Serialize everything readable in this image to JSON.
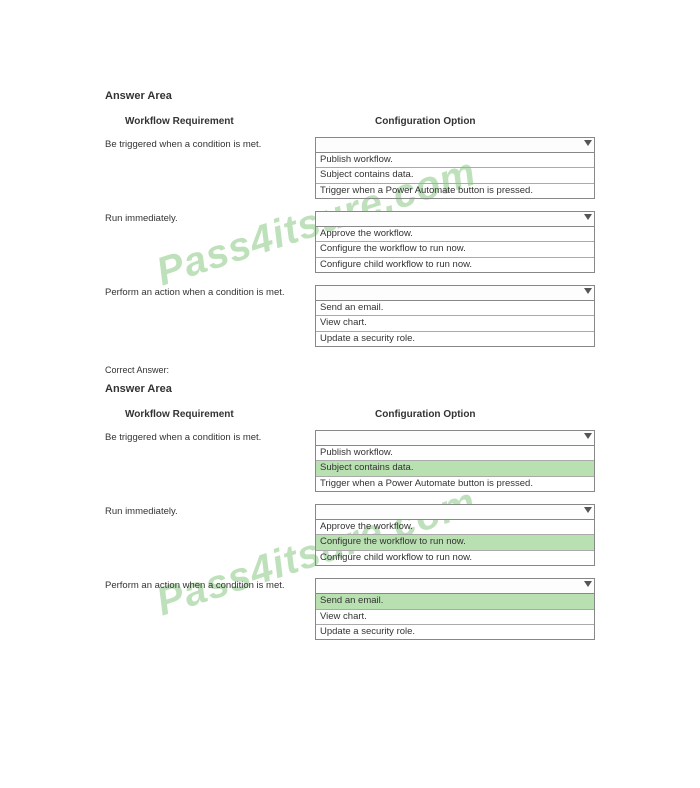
{
  "watermark_text": "Pass4itsure.com",
  "section1": {
    "title": "Answer Area",
    "header_left": "Workflow Requirement",
    "header_right": "Configuration Option",
    "rows": [
      {
        "req": "Be triggered when a condition is met.",
        "options": [
          {
            "text": "Publish workflow.",
            "hl": false
          },
          {
            "text": "Subject contains data.",
            "hl": false
          },
          {
            "text": "Trigger when a Power Automate button is pressed.",
            "hl": false
          }
        ]
      },
      {
        "req": "Run immediately.",
        "options": [
          {
            "text": "Approve the workflow.",
            "hl": false
          },
          {
            "text": "Configure the workflow to run now.",
            "hl": false
          },
          {
            "text": "Configure child workflow to run now.",
            "hl": false
          }
        ]
      },
      {
        "req": "Perform an action when a condition is met.",
        "options": [
          {
            "text": "Send an email.",
            "hl": false
          },
          {
            "text": "View chart.",
            "hl": false
          },
          {
            "text": "Update a security role.",
            "hl": false
          }
        ]
      }
    ]
  },
  "correct_label": "Correct Answer:",
  "section2": {
    "title": "Answer Area",
    "header_left": "Workflow Requirement",
    "header_right": "Configuration Option",
    "rows": [
      {
        "req": "Be triggered when a condition is met.",
        "options": [
          {
            "text": "Publish workflow.",
            "hl": false
          },
          {
            "text": "Subject contains data.",
            "hl": true
          },
          {
            "text": "Trigger when a Power Automate button is pressed.",
            "hl": false
          }
        ]
      },
      {
        "req": "Run immediately.",
        "options": [
          {
            "text": "Approve the workflow.",
            "hl": false
          },
          {
            "text": "Configure the workflow to run now.",
            "hl": true
          },
          {
            "text": "Configure child workflow to run now.",
            "hl": false
          }
        ]
      },
      {
        "req": "Perform an action when a condition is met.",
        "options": [
          {
            "text": "Send an email.",
            "hl": true
          },
          {
            "text": "View chart.",
            "hl": false
          },
          {
            "text": "Update a security role.",
            "hl": false
          }
        ]
      }
    ]
  }
}
